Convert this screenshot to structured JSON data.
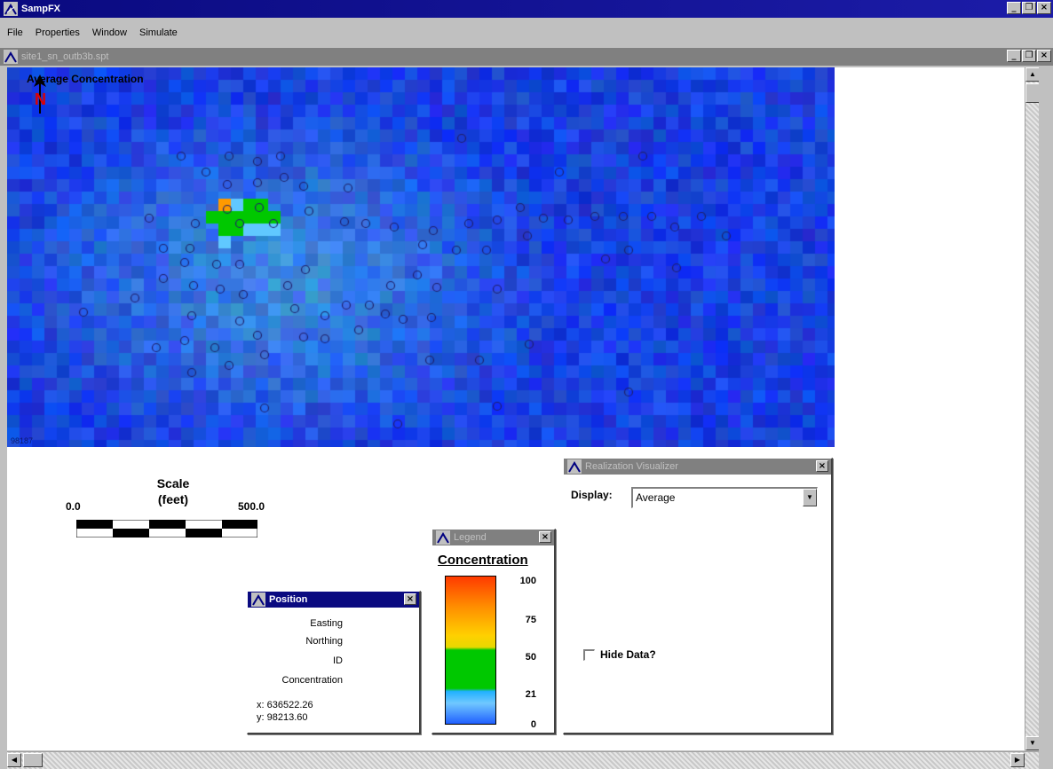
{
  "app": {
    "title": "SampFX",
    "menu": [
      "File",
      "Properties",
      "Window",
      "Simulate"
    ]
  },
  "child_window": {
    "title": "site1_sn_outb3b.spt"
  },
  "map": {
    "title": "Average Concentration",
    "north_label": "N",
    "corner_value": "98187"
  },
  "scale": {
    "title_line1": "Scale",
    "title_line2": "(feet)",
    "min": "0.0",
    "max": "500.0"
  },
  "position_window": {
    "title": "Position",
    "easting_label": "Easting",
    "northing_label": "Northing",
    "id_label": "ID",
    "concentration_label": "Concentration",
    "x_readout": "x: 636522.26",
    "y_readout": "y: 98213.60"
  },
  "legend_window": {
    "title": "Legend",
    "caption": "Concentration",
    "ticks": [
      "100",
      "75",
      "50",
      "21",
      "0"
    ]
  },
  "visualizer_window": {
    "title": "Realization Visualizer",
    "display_label": "Display:",
    "display_value": "Average",
    "hide_data_label": "Hide Data?",
    "hide_data_checked": false
  },
  "colors": {
    "titlebar_active": "#0a0a80",
    "map_base": "#1a3ef0",
    "hotspot_orange": "#ff9a00",
    "hotspot_green": "#00c800",
    "hotspot_lightblue": "#60c8ff"
  }
}
